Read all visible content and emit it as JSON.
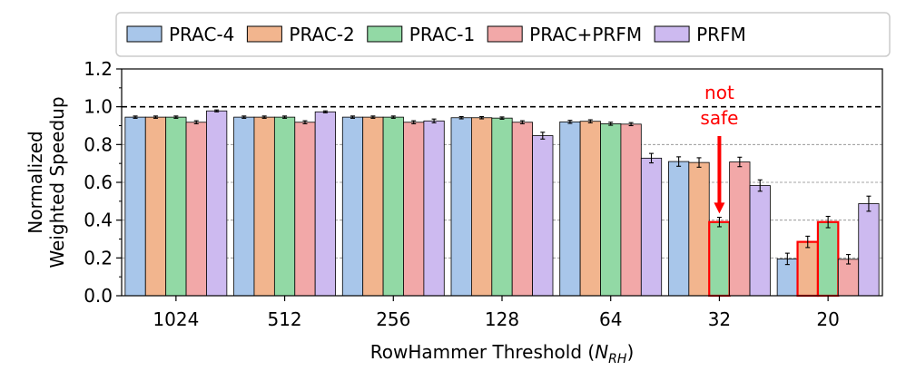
{
  "chart_data": {
    "type": "bar",
    "categories": [
      "1024",
      "512",
      "256",
      "128",
      "64",
      "32",
      "20"
    ],
    "series": [
      {
        "name": "PRAC-4",
        "values": [
          0.945,
          0.945,
          0.945,
          0.942,
          0.92,
          0.71,
          0.195
        ],
        "errors": [
          0.006,
          0.006,
          0.006,
          0.006,
          0.008,
          0.025,
          0.03
        ],
        "color": "#a8c6ea"
      },
      {
        "name": "PRAC-2",
        "values": [
          0.945,
          0.945,
          0.945,
          0.942,
          0.923,
          0.705,
          0.285
        ],
        "errors": [
          0.006,
          0.006,
          0.006,
          0.006,
          0.008,
          0.025,
          0.03
        ],
        "color": "#f2b58e"
      },
      {
        "name": "PRAC-1",
        "values": [
          0.945,
          0.945,
          0.945,
          0.94,
          0.91,
          0.39,
          0.39
        ],
        "errors": [
          0.006,
          0.006,
          0.006,
          0.006,
          0.008,
          0.025,
          0.03
        ],
        "color": "#92d9a5"
      },
      {
        "name": "PRAC+PRFM",
        "values": [
          0.918,
          0.918,
          0.918,
          0.918,
          0.908,
          0.708,
          0.193
        ],
        "errors": [
          0.008,
          0.008,
          0.008,
          0.008,
          0.008,
          0.025,
          0.025
        ],
        "color": "#f2a8a8"
      },
      {
        "name": "PRFM",
        "values": [
          0.978,
          0.973,
          0.925,
          0.847,
          0.728,
          0.583,
          0.487
        ],
        "errors": [
          0.005,
          0.005,
          0.01,
          0.018,
          0.025,
          0.03,
          0.04
        ],
        "color": "#cdbaf0"
      }
    ],
    "highlighted_bars": [
      {
        "category": "32",
        "series": "PRAC-1"
      },
      {
        "category": "20",
        "series": "PRAC-2"
      },
      {
        "category": "20",
        "series": "PRAC-1"
      }
    ],
    "highlight_color": "#ff0000",
    "annotation": {
      "text_line1": "not",
      "text_line2": "safe",
      "category": "32",
      "series": "PRAC-1",
      "color": "#ff0000"
    },
    "reference_line": {
      "y": 1.0,
      "style": "dashed",
      "color": "#000000"
    },
    "xlabel_main": "RowHammer Threshold (",
    "xlabel_symbol": "N",
    "xlabel_subscript": "RH",
    "xlabel_close": ")",
    "ylabel_line1": "Normalized",
    "ylabel_line2": "Weighted Speedup",
    "yticks": [
      "0.0",
      "0.2",
      "0.4",
      "0.6",
      "0.8",
      "1.0",
      "1.2"
    ],
    "ylim": [
      0,
      1.2
    ],
    "grid": "horizontal dashed",
    "legend_position": "top"
  }
}
